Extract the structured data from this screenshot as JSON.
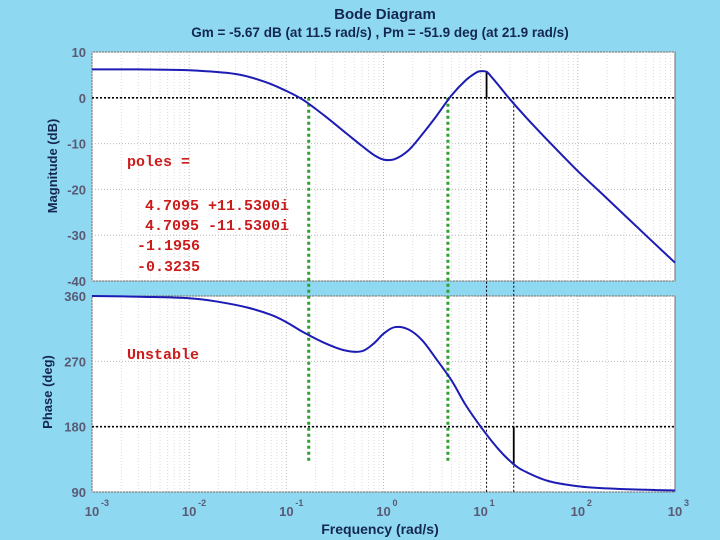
{
  "chart_data": {
    "type": "line",
    "title": "Bode Diagram",
    "subtitle": "Gm = -5.67 dB (at 11.5 rad/s) ,  Pm = -51.9 deg (at 21.9 rad/s)",
    "xlabel": "Frequency  (rad/s)",
    "xscale": "log",
    "xlim": [
      0.001,
      1000
    ],
    "x_ticks": [
      {
        "value": 0.001,
        "base": "10",
        "exp": "-3"
      },
      {
        "value": 0.01,
        "base": "10",
        "exp": "-2"
      },
      {
        "value": 0.1,
        "base": "10",
        "exp": "-1"
      },
      {
        "value": 1,
        "base": "10",
        "exp": "0"
      },
      {
        "value": 10,
        "base": "10",
        "exp": "1"
      },
      {
        "value": 100,
        "base": "10",
        "exp": "2"
      },
      {
        "value": 1000,
        "base": "10",
        "exp": "3"
      }
    ],
    "grid": true,
    "magnitude": {
      "ylabel": "Magnitude (dB)",
      "ylim": [
        -40,
        10
      ],
      "y_ticks": [
        "10",
        "0",
        "-10",
        "-20",
        "-30",
        "-40"
      ],
      "series": {
        "x": [
          0.001,
          0.003,
          0.01,
          0.03,
          0.06,
          0.1,
          0.15,
          0.25,
          0.4,
          0.6,
          0.8,
          1.0,
          1.3,
          1.8,
          2.5,
          3.5,
          5,
          7,
          9,
          10,
          11.5,
          13,
          16,
          20,
          30,
          50,
          100,
          200,
          500,
          1000
        ],
        "y": [
          6.2,
          6.2,
          6.0,
          5.2,
          3.5,
          1.5,
          -0.5,
          -4.0,
          -7.5,
          -10.5,
          -12.5,
          -13.5,
          -13.4,
          -11.5,
          -8.0,
          -4.0,
          0.5,
          3.8,
          5.5,
          5.8,
          5.67,
          4.5,
          2.2,
          -0.3,
          -4.5,
          -9.5,
          -16.0,
          -22.0,
          -30.0,
          -36.0
        ]
      }
    },
    "phase": {
      "ylabel": "Phase (deg)",
      "ylim": [
        90,
        360
      ],
      "y_ticks": [
        "360",
        "270",
        "180",
        "90"
      ],
      "series": {
        "x": [
          0.001,
          0.003,
          0.01,
          0.02,
          0.04,
          0.07,
          0.1,
          0.15,
          0.25,
          0.4,
          0.6,
          0.8,
          1.0,
          1.3,
          1.8,
          2.5,
          3.5,
          5,
          7,
          10,
          15,
          21.9,
          30,
          50,
          100,
          200,
          500,
          1000
        ],
        "y": [
          360,
          359,
          357,
          352,
          344,
          334,
          324,
          310,
          295,
          285,
          284,
          295,
          308,
          317,
          314,
          299,
          273,
          244,
          210,
          180,
          150,
          128.1,
          117,
          105,
          98,
          95,
          93,
          92
        ]
      }
    },
    "reference_lines": [
      {
        "panel": "magnitude",
        "orientation": "horizontal",
        "value": 0
      },
      {
        "panel": "phase",
        "orientation": "horizontal",
        "value": 180
      }
    ],
    "markers": [
      {
        "panel": "magnitude",
        "x": 11.5,
        "from": 0,
        "to": 5.67
      },
      {
        "panel": "phase",
        "x": 21.9,
        "from": 180,
        "to": 128.1
      }
    ],
    "crossover_lines": [
      {
        "x": 0.17,
        "color": "#2ea02e",
        "style": "dotted"
      },
      {
        "x": 4.6,
        "color": "#2ea02e",
        "style": "dotted"
      },
      {
        "x": 11.5,
        "color": "#000000",
        "style": "dotted"
      },
      {
        "x": 21.9,
        "color": "#000000",
        "style": "dotted"
      }
    ],
    "annotations": [
      {
        "text": "poles ="
      },
      {
        "text": "4.7095 +11.5300i"
      },
      {
        "text": "4.7095 -11.5300i"
      },
      {
        "text": "-1.1956"
      },
      {
        "text": "-0.3235"
      },
      {
        "text": "Unstable"
      }
    ],
    "colors": {
      "curve": "#1c1cb4",
      "annotation": "#cc1b1b",
      "background": "#8fd8f2",
      "plot_bg": "#ffffff"
    }
  }
}
